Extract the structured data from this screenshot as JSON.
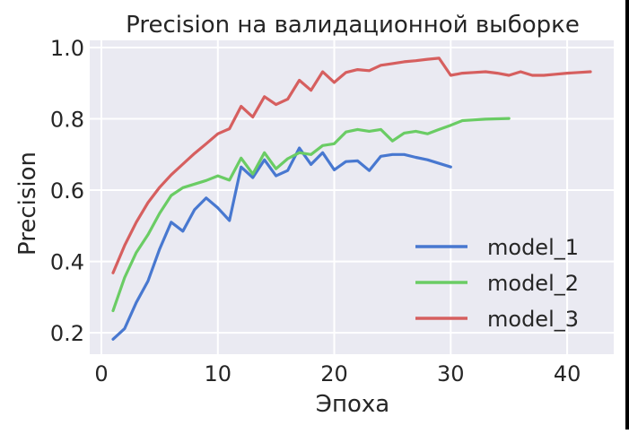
{
  "chart_data": {
    "type": "line",
    "title": "Precision на валидационной выборке",
    "xlabel": "Эпоха",
    "ylabel": "Precision",
    "xlim": [
      -1,
      44
    ],
    "ylim": [
      0.14,
      1.02
    ],
    "xticks": [
      0,
      10,
      20,
      30,
      40
    ],
    "yticks": [
      0.2,
      0.4,
      0.6,
      0.8,
      1.0
    ],
    "xtick_labels": [
      "0",
      "10",
      "20",
      "30",
      "40"
    ],
    "ytick_labels": [
      "0.2",
      "0.4",
      "0.6",
      "0.8",
      "1.0"
    ],
    "grid": true,
    "legend_position": "lower-right",
    "background": "#eaeaf2",
    "series": [
      {
        "name": "model_1",
        "color": "#4878d0",
        "x": [
          1,
          2,
          3,
          4,
          5,
          6,
          7,
          8,
          9,
          10,
          11,
          12,
          13,
          14,
          15,
          16,
          17,
          18,
          19,
          20,
          21,
          22,
          23,
          24,
          25,
          26,
          27,
          28,
          29,
          30
        ],
        "values": [
          0.182,
          0.212,
          0.285,
          0.345,
          0.435,
          0.51,
          0.485,
          0.545,
          0.578,
          0.55,
          0.515,
          0.665,
          0.635,
          0.685,
          0.64,
          0.655,
          0.718,
          0.672,
          0.705,
          0.657,
          0.68,
          0.682,
          0.655,
          0.695,
          0.7,
          0.7,
          0.692,
          0.685,
          0.675,
          0.665
        ]
      },
      {
        "name": "model_2",
        "color": "#6acc64",
        "x": [
          1,
          2,
          3,
          4,
          5,
          6,
          7,
          8,
          9,
          10,
          11,
          12,
          13,
          14,
          15,
          16,
          17,
          18,
          19,
          20,
          21,
          22,
          23,
          24,
          25,
          26,
          27,
          28,
          29,
          30,
          31,
          32,
          33,
          34,
          35
        ],
        "values": [
          0.262,
          0.355,
          0.425,
          0.475,
          0.535,
          0.585,
          0.607,
          0.617,
          0.627,
          0.64,
          0.628,
          0.69,
          0.645,
          0.705,
          0.66,
          0.688,
          0.705,
          0.7,
          0.725,
          0.73,
          0.763,
          0.77,
          0.765,
          0.77,
          0.738,
          0.76,
          0.765,
          0.758,
          0.77,
          0.782,
          0.795,
          0.797,
          0.799,
          0.8,
          0.801
        ]
      },
      {
        "name": "model_3",
        "color": "#d65f5f",
        "x": [
          1,
          2,
          3,
          4,
          5,
          6,
          7,
          8,
          9,
          10,
          11,
          12,
          13,
          14,
          15,
          16,
          17,
          18,
          19,
          20,
          21,
          22,
          23,
          24,
          25,
          26,
          27,
          28,
          29,
          30,
          31,
          32,
          33,
          34,
          35,
          36,
          37,
          38,
          39,
          40,
          41,
          42
        ],
        "values": [
          0.368,
          0.445,
          0.51,
          0.565,
          0.608,
          0.643,
          0.673,
          0.703,
          0.73,
          0.758,
          0.772,
          0.835,
          0.805,
          0.862,
          0.84,
          0.855,
          0.908,
          0.88,
          0.932,
          0.902,
          0.93,
          0.938,
          0.935,
          0.95,
          0.955,
          0.96,
          0.963,
          0.967,
          0.97,
          0.922,
          0.928,
          0.93,
          0.932,
          0.928,
          0.922,
          0.932,
          0.922,
          0.922,
          0.925,
          0.928,
          0.93,
          0.932
        ]
      }
    ]
  }
}
